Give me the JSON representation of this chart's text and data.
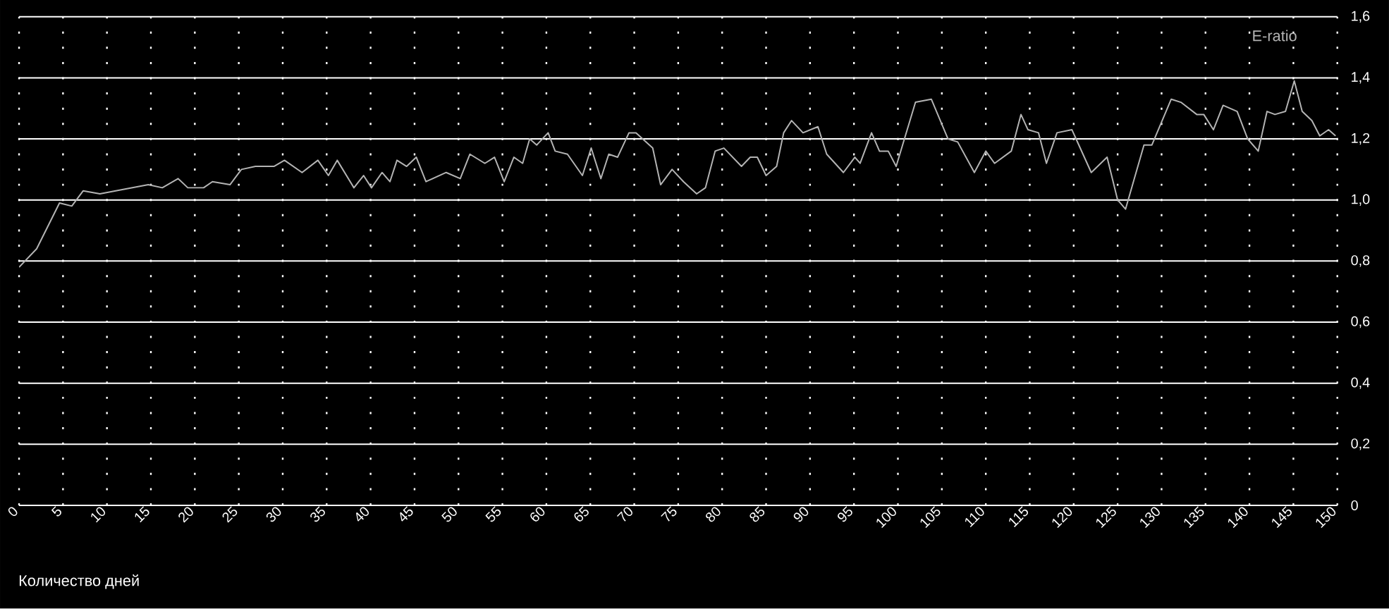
{
  "chart_data": {
    "type": "line",
    "xlabel": "Количество дней",
    "x": [
      0,
      2,
      4.6,
      6,
      7.3,
      9.2,
      14.7,
      16.3,
      18.1,
      19.2,
      21,
      22,
      24,
      25.3,
      26.9,
      29,
      30.2,
      32.2,
      34,
      35.2,
      36.2,
      38.1,
      39.2,
      40.1,
      41.3,
      42.2,
      43,
      44.1,
      45.2,
      46.3,
      48.6,
      50.2,
      51.3,
      53,
      54.1,
      55.2,
      56.3,
      57.3,
      58.1,
      58.9,
      60.2,
      61,
      62.4,
      64.1,
      65.1,
      66.2,
      67.1,
      68.1,
      69.4,
      70.2,
      72.1,
      73,
      74.3,
      75.6,
      77.1,
      78.1,
      79.2,
      80.2,
      82.2,
      83.2,
      84,
      85,
      86.2,
      87,
      87.9,
      89.2,
      90.9,
      91.9,
      93.8,
      95.1,
      95.7,
      97,
      97.9,
      98.9,
      99.8,
      102,
      103.8,
      105.7,
      106.8,
      108.7,
      110,
      111,
      112.9,
      114,
      114.8,
      116,
      116.9,
      118.1,
      119.8,
      122,
      123.8,
      125,
      125.9,
      128,
      128.9,
      131.1,
      132.2,
      134,
      134.8,
      135.9,
      137,
      138.6,
      139.8,
      141,
      142,
      142.9,
      144.1,
      145.1,
      146,
      147.1,
      148,
      149,
      149.8
    ],
    "series": [
      {
        "name": "E-ratio",
        "color": "#b4b4b4",
        "values": [
          0.78,
          0.84,
          0.99,
          0.98,
          1.03,
          1.02,
          1.05,
          1.04,
          1.07,
          1.04,
          1.04,
          1.06,
          1.05,
          1.1,
          1.11,
          1.11,
          1.13,
          1.09,
          1.13,
          1.08,
          1.13,
          1.04,
          1.08,
          1.04,
          1.09,
          1.06,
          1.13,
          1.11,
          1.14,
          1.06,
          1.09,
          1.07,
          1.15,
          1.12,
          1.14,
          1.06,
          1.14,
          1.12,
          1.2,
          1.18,
          1.22,
          1.16,
          1.15,
          1.08,
          1.17,
          1.07,
          1.15,
          1.14,
          1.22,
          1.22,
          1.17,
          1.05,
          1.1,
          1.06,
          1.02,
          1.04,
          1.16,
          1.17,
          1.11,
          1.14,
          1.14,
          1.08,
          1.11,
          1.22,
          1.26,
          1.22,
          1.24,
          1.15,
          1.09,
          1.14,
          1.12,
          1.22,
          1.16,
          1.16,
          1.11,
          1.32,
          1.33,
          1.2,
          1.19,
          1.09,
          1.16,
          1.12,
          1.16,
          1.28,
          1.23,
          1.22,
          1.12,
          1.22,
          1.23,
          1.09,
          1.14,
          1.0,
          0.97,
          1.18,
          1.18,
          1.33,
          1.32,
          1.28,
          1.28,
          1.23,
          1.31,
          1.29,
          1.2,
          1.16,
          1.29,
          1.28,
          1.29,
          1.39,
          1.29,
          1.26,
          1.21,
          1.23,
          1.21
        ]
      }
    ],
    "xlim": [
      0,
      150
    ],
    "xticks": [
      0,
      5,
      10,
      15,
      20,
      25,
      30,
      35,
      40,
      45,
      50,
      55,
      60,
      65,
      70,
      75,
      80,
      85,
      90,
      95,
      100,
      105,
      110,
      115,
      120,
      125,
      130,
      135,
      140,
      145,
      150
    ],
    "ylim": [
      0,
      1.6
    ],
    "yticks": [
      0,
      {
        "value": 0.2,
        "label": "0,2"
      },
      {
        "value": 0.4,
        "label": "0,4"
      },
      {
        "value": 0.6,
        "label": "0,6"
      },
      {
        "value": 0.8,
        "label": "0,8"
      },
      {
        "value": 1.0,
        "label": "1,0"
      },
      {
        "value": 1.2,
        "label": "1,2"
      },
      {
        "value": 1.4,
        "label": "1,4"
      },
      {
        "value": 1.6,
        "label": "1,6"
      }
    ],
    "grid": true,
    "legend": "top right",
    "marker": "none",
    "line_style": "solid"
  }
}
